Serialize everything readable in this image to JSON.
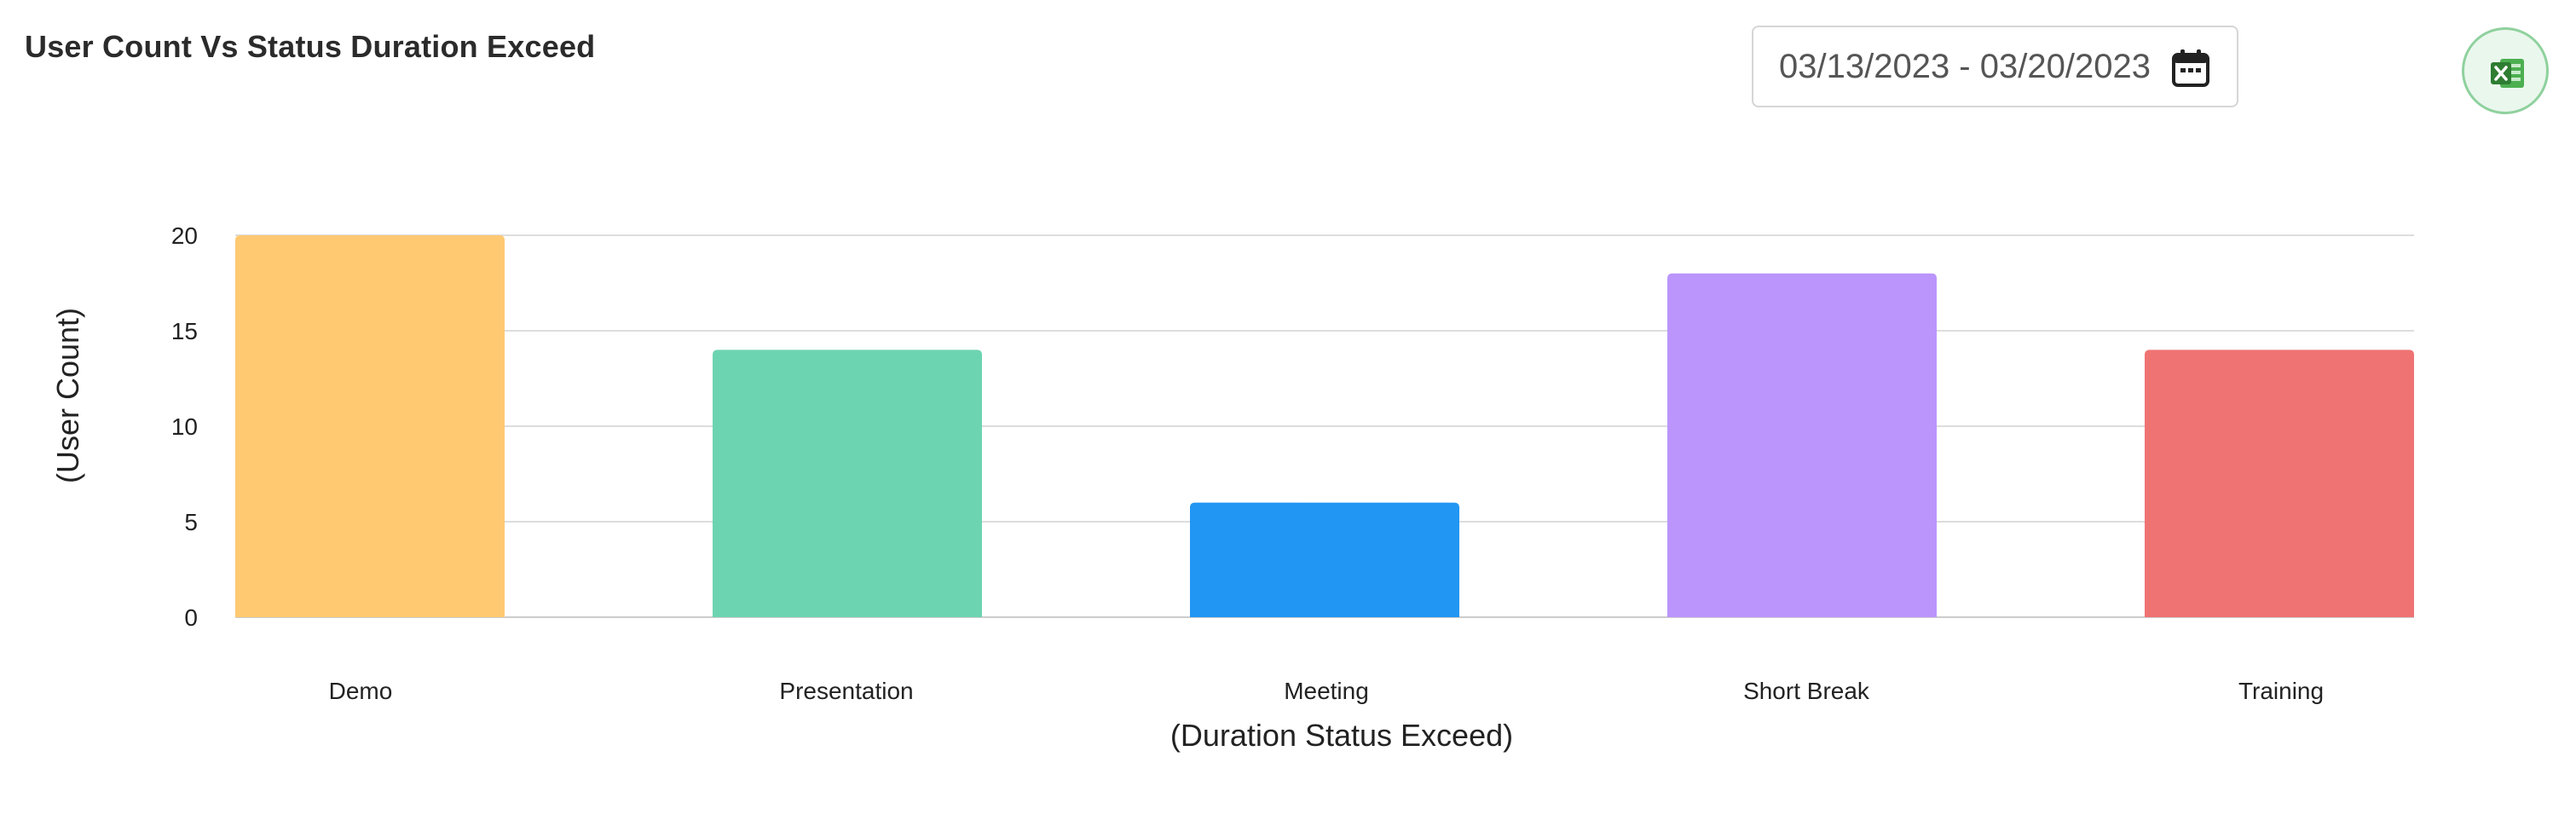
{
  "header": {
    "title": "User Count Vs Status Duration Exceed"
  },
  "date_range": {
    "value": "03/13/2023 - 03/20/2023",
    "icon": "calendar-icon"
  },
  "export": {
    "icon": "excel-icon",
    "color": "#4caf50"
  },
  "chart_data": {
    "type": "bar",
    "categories": [
      "Demo",
      "Presentation",
      "Meeting",
      "Short Break",
      "Training"
    ],
    "values": [
      20,
      14,
      6,
      18,
      14
    ],
    "colors": [
      "#ffc972",
      "#6dd4b1",
      "#2196f3",
      "#bb95fb",
      "#ef7373"
    ],
    "xlabel": "(Duration Status Exceed)",
    "ylabel": "(User Count)",
    "ylim": [
      0,
      20
    ],
    "yticks": [
      0,
      5,
      10,
      15,
      20
    ],
    "grid": true,
    "legend": "none"
  }
}
